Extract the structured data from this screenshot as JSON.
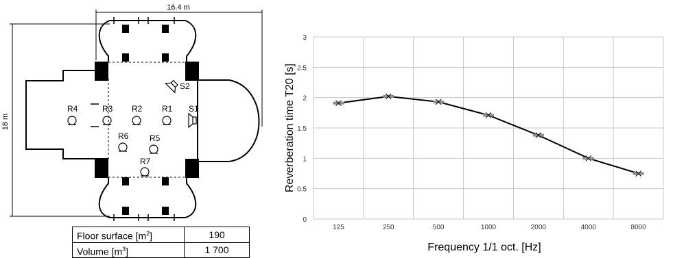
{
  "plan": {
    "width_dim": "16.4 m",
    "height_dim": "18 m",
    "receivers": [
      "R1",
      "R2",
      "R3",
      "R4",
      "R5",
      "R6",
      "R7"
    ],
    "sources": [
      "S1",
      "S2"
    ]
  },
  "table": {
    "rows": [
      {
        "label": "Floor surface [m",
        "sup": "2",
        "close": "]",
        "value": "190"
      },
      {
        "label": "Volume [m",
        "sup": "3",
        "close": "]",
        "value": "1 700"
      }
    ]
  },
  "chart_data": {
    "type": "line",
    "xlabel": "Frequency 1/1 oct. [Hz]",
    "ylabel": "Reverberation time T20 [s]",
    "ylim": [
      0,
      3
    ],
    "yticks": [
      "0",
      "0.5",
      "1",
      "1.5",
      "2",
      "2.5",
      "3"
    ],
    "categories": [
      "125",
      "250",
      "500",
      "1000",
      "2000",
      "4000",
      "8000"
    ],
    "series": [
      {
        "values": [
          1.91,
          2.02,
          1.93,
          1.71,
          1.38,
          1.0,
          0.75
        ]
      }
    ],
    "grid": true,
    "line_color": "#000000",
    "marker_color": "#8c8c8c"
  }
}
